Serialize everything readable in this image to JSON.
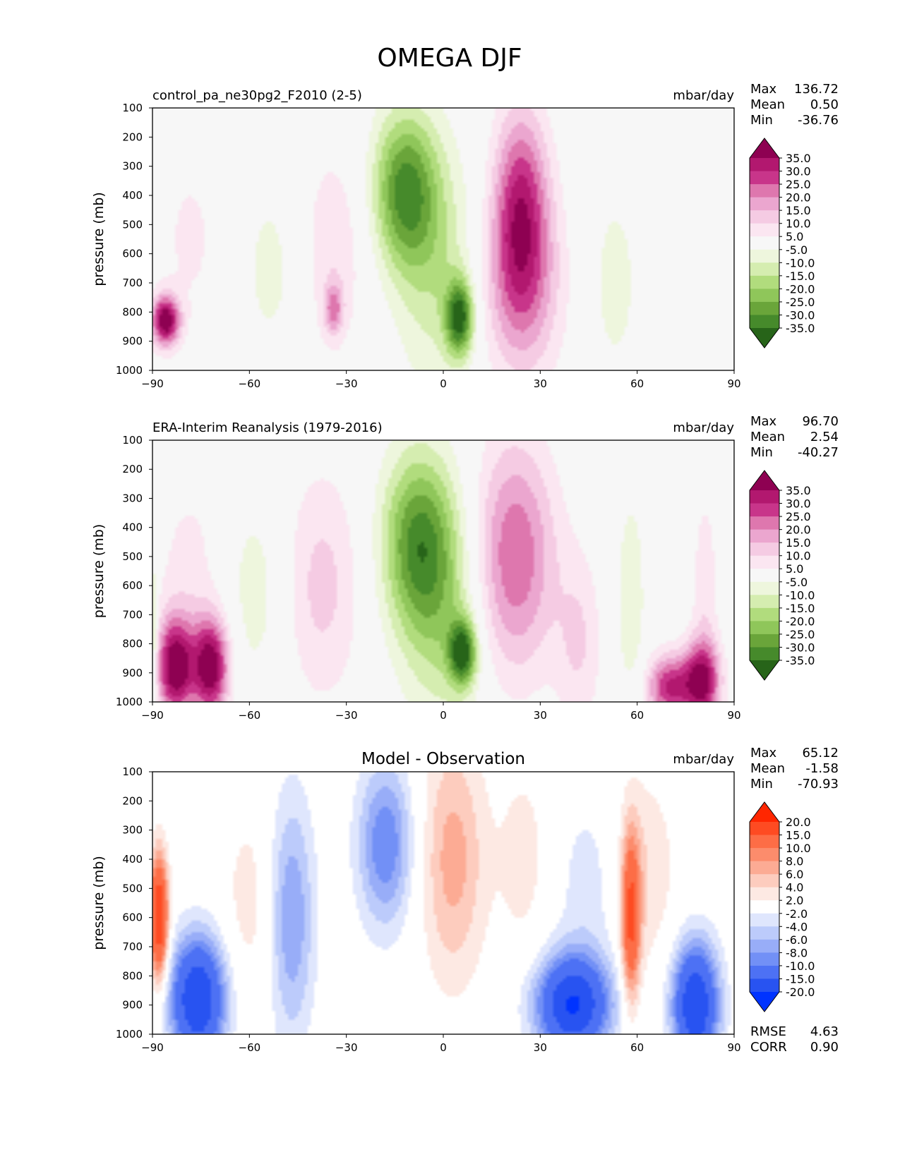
{
  "figure": {
    "title": "OMEGA DJF"
  },
  "chart_data": [
    {
      "type": "heatmap",
      "title": "control_pa_ne30pg2_F2010 (2-5)",
      "title_position": "left",
      "units": "mbar/day",
      "xlabel": "",
      "ylabel": "pressure (mb)",
      "xlim": [
        -90,
        90
      ],
      "ylim": [
        1000,
        100
      ],
      "x_ticks": [
        -90,
        -60,
        -30,
        0,
        30,
        60,
        90
      ],
      "x_tick_labels": [
        "−90",
        "−60",
        "−30",
        "0",
        "30",
        "60",
        "90"
      ],
      "y_ticks": [
        100,
        200,
        300,
        400,
        500,
        600,
        700,
        800,
        900,
        1000
      ],
      "stats": [
        {
          "label": "Max",
          "value": "136.72"
        },
        {
          "label": "Mean",
          "value": "0.50"
        },
        {
          "label": "Min",
          "value": "-36.76"
        }
      ],
      "colorbar": {
        "labels": [
          "35.0",
          "30.0",
          "25.0",
          "20.0",
          "15.0",
          "10.0",
          "5.0",
          "-5.0",
          "-10.0",
          "-15.0",
          "-20.0",
          "-25.0",
          "-30.0",
          "-35.0"
        ],
        "colors": [
          "#8e0152",
          "#b2186f",
          "#c8358a",
          "#de77ae",
          "#eba6cf",
          "#f5cbe3",
          "#fbe6f1",
          "#f7f7f7",
          "#eef6dd",
          "#d5edb0",
          "#b1dc7d",
          "#8fc65a",
          "#6aa53a",
          "#468a2b",
          "#276419"
        ]
      },
      "field": [
        {
          "x": -86,
          "p": 830,
          "v": 40,
          "sx": 3,
          "sp": 60
        },
        {
          "x": -78,
          "p": 550,
          "v": 6,
          "sx": 8,
          "sp": 250
        },
        {
          "x": -52,
          "p": 650,
          "v": -7,
          "sx": 9,
          "sp": 250
        },
        {
          "x": -35,
          "p": 600,
          "v": 10,
          "sx": 8,
          "sp": 260
        },
        {
          "x": -34,
          "p": 790,
          "v": 18,
          "sx": 2,
          "sp": 60
        },
        {
          "x": -12,
          "p": 380,
          "v": -30,
          "sx": 7,
          "sp": 190
        },
        {
          "x": -2,
          "p": 650,
          "v": -13,
          "sx": 9,
          "sp": 300
        },
        {
          "x": 5,
          "p": 820,
          "v": -35,
          "sx": 3,
          "sp": 90
        },
        {
          "x": 24,
          "p": 430,
          "v": 28,
          "sx": 6,
          "sp": 240
        },
        {
          "x": 24,
          "p": 720,
          "v": 18,
          "sx": 9,
          "sp": 230
        },
        {
          "x": 53,
          "p": 700,
          "v": -7,
          "sx": 6,
          "sp": 260
        }
      ]
    },
    {
      "type": "heatmap",
      "title": "ERA-Interim Reanalysis (1979-2016)",
      "title_position": "left",
      "units": "mbar/day",
      "xlabel": "",
      "ylabel": "pressure (mb)",
      "xlim": [
        -90,
        90
      ],
      "ylim": [
        1000,
        100
      ],
      "x_ticks": [
        -90,
        -60,
        -30,
        0,
        30,
        60,
        90
      ],
      "x_tick_labels": [
        "−90",
        "−60",
        "−30",
        "0",
        "30",
        "60",
        "90"
      ],
      "y_ticks": [
        100,
        200,
        300,
        400,
        500,
        600,
        700,
        800,
        900,
        1000
      ],
      "stats": [
        {
          "label": "Max",
          "value": "96.70"
        },
        {
          "label": "Mean",
          "value": "2.54"
        },
        {
          "label": "Min",
          "value": "-40.27"
        }
      ],
      "colorbar": {
        "labels": [
          "35.0",
          "30.0",
          "25.0",
          "20.0",
          "15.0",
          "10.0",
          "5.0",
          "-5.0",
          "-10.0",
          "-15.0",
          "-20.0",
          "-25.0",
          "-30.0",
          "-35.0"
        ],
        "colors": [
          "#8e0152",
          "#b2186f",
          "#c8358a",
          "#de77ae",
          "#eba6cf",
          "#f5cbe3",
          "#fbe6f1",
          "#f7f7f7",
          "#eef6dd",
          "#d5edb0",
          "#b1dc7d",
          "#8fc65a",
          "#6aa53a",
          "#468a2b",
          "#276419"
        ]
      },
      "field": [
        {
          "x": -83,
          "p": 880,
          "v": 40,
          "sx": 4,
          "sp": 120
        },
        {
          "x": -72,
          "p": 880,
          "v": 40,
          "sx": 4,
          "sp": 120
        },
        {
          "x": -90,
          "p": 800,
          "v": -18,
          "sx": 1,
          "sp": 200
        },
        {
          "x": -78,
          "p": 550,
          "v": 7,
          "sx": 8,
          "sp": 250
        },
        {
          "x": -58,
          "p": 620,
          "v": -8,
          "sx": 8,
          "sp": 260
        },
        {
          "x": -38,
          "p": 600,
          "v": 12,
          "sx": 9,
          "sp": 280
        },
        {
          "x": -8,
          "p": 450,
          "v": -28,
          "sx": 8,
          "sp": 220
        },
        {
          "x": 0,
          "p": 700,
          "v": -14,
          "sx": 9,
          "sp": 300
        },
        {
          "x": 6,
          "p": 830,
          "v": -35,
          "sx": 3,
          "sp": 80
        },
        {
          "x": 22,
          "p": 500,
          "v": 25,
          "sx": 9,
          "sp": 280
        },
        {
          "x": 42,
          "p": 800,
          "v": 10,
          "sx": 5,
          "sp": 220
        },
        {
          "x": 58,
          "p": 650,
          "v": -10,
          "sx": 3,
          "sp": 250
        },
        {
          "x": 70,
          "p": 950,
          "v": 30,
          "sx": 5,
          "sp": 80
        },
        {
          "x": 80,
          "p": 930,
          "v": 35,
          "sx": 4,
          "sp": 100
        },
        {
          "x": 81,
          "p": 600,
          "v": 8,
          "sx": 3,
          "sp": 250
        }
      ]
    },
    {
      "type": "heatmap",
      "title": "Model - Observation",
      "title_position": "center",
      "units": "mbar/day",
      "xlabel": "",
      "ylabel": "pressure (mb)",
      "xlim": [
        -90,
        90
      ],
      "ylim": [
        1000,
        100
      ],
      "x_ticks": [
        -90,
        -60,
        -30,
        0,
        30,
        60,
        90
      ],
      "x_tick_labels": [
        "−90",
        "−60",
        "−30",
        "0",
        "30",
        "60",
        "90"
      ],
      "y_ticks": [
        100,
        200,
        300,
        400,
        500,
        600,
        700,
        800,
        900,
        1000
      ],
      "stats": [
        {
          "label": "Max",
          "value": "65.12"
        },
        {
          "label": "Mean",
          "value": "-1.58"
        },
        {
          "label": "Min",
          "value": "-70.93"
        }
      ],
      "bottom_stats": [
        {
          "label": "RMSE",
          "value": "4.63"
        },
        {
          "label": "CORR",
          "value": "0.90"
        }
      ],
      "colorbar": {
        "labels": [
          "20.0",
          "15.0",
          "10.0",
          "8.0",
          "6.0",
          "4.0",
          "2.0",
          "-2.0",
          "-4.0",
          "-6.0",
          "-8.0",
          "-10.0",
          "-15.0",
          "-20.0"
        ],
        "colors": [
          "#ff2600",
          "#fe4b22",
          "#fd6d46",
          "#fc8c6c",
          "#fcab94",
          "#fdccbe",
          "#fde9e3",
          "#ffffff",
          "#dfe6fd",
          "#bccbfb",
          "#98adf8",
          "#7290f6",
          "#4d71f4",
          "#2853f1",
          "#0033ff"
        ]
      },
      "field": [
        {
          "x": -88,
          "p": 600,
          "v": 20,
          "sx": 2,
          "sp": 150
        },
        {
          "x": -76,
          "p": 880,
          "v": -20,
          "sx": 6,
          "sp": 150
        },
        {
          "x": -60,
          "p": 550,
          "v": 3,
          "sx": 6,
          "sp": 250
        },
        {
          "x": -47,
          "p": 600,
          "v": -8,
          "sx": 5,
          "sp": 300
        },
        {
          "x": -18,
          "p": 350,
          "v": -10,
          "sx": 6,
          "sp": 200
        },
        {
          "x": 3,
          "p": 400,
          "v": 7,
          "sx": 7,
          "sp": 300
        },
        {
          "x": 25,
          "p": 400,
          "v": 3,
          "sx": 6,
          "sp": 250
        },
        {
          "x": 40,
          "p": 900,
          "v": -20,
          "sx": 8,
          "sp": 120
        },
        {
          "x": 45,
          "p": 500,
          "v": -3,
          "sx": 8,
          "sp": 250
        },
        {
          "x": 58,
          "p": 600,
          "v": 15,
          "sx": 2,
          "sp": 200
        },
        {
          "x": 62,
          "p": 450,
          "v": 4,
          "sx": 7,
          "sp": 250
        },
        {
          "x": 78,
          "p": 900,
          "v": -20,
          "sx": 5,
          "sp": 150
        }
      ]
    }
  ]
}
